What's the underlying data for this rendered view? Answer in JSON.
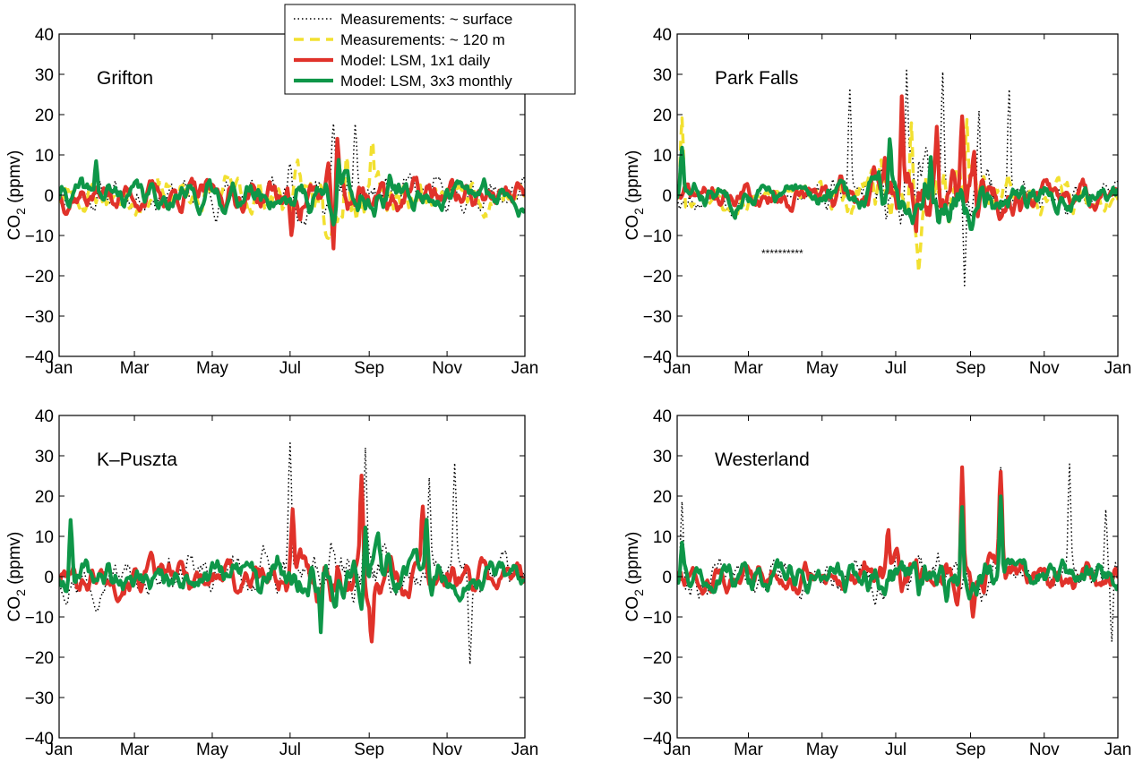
{
  "chart_data": {
    "type": "line",
    "legend": {
      "placement": "top-center",
      "entries": [
        {
          "label": "Measurements: ~ surface",
          "color": "#000000",
          "style": "dotted"
        },
        {
          "label": "Measurements: ~ 120 m",
          "color": "#f2e030",
          "style": "dashed"
        },
        {
          "label": "Model: LSM, 1x1 daily",
          "color": "#e0322a",
          "style": "solid"
        },
        {
          "label": "Model: LSM, 3x3 monthly",
          "color": "#0e9648",
          "style": "solid"
        }
      ]
    },
    "shared_axes": {
      "x_ticks": [
        "Jan",
        "Mar",
        "May",
        "Jul",
        "Sep",
        "Nov",
        "Jan"
      ],
      "x_tick_days": [
        0,
        59,
        120,
        181,
        243,
        304,
        365
      ],
      "xlim": [
        0,
        365
      ],
      "y_ticks": [
        "−40",
        "−30",
        "−20",
        "−10",
        "0",
        "10",
        "20",
        "30",
        "40"
      ],
      "y_tick_values": [
        -40,
        -30,
        -20,
        -10,
        0,
        10,
        20,
        30,
        40
      ],
      "ylim": [
        -40,
        40
      ],
      "ylabel_main": "CO",
      "ylabel_sub": "2",
      "ylabel_unit": " (ppmv)"
    },
    "panels": [
      {
        "station": "Grifton",
        "series": [
          {
            "name": "Measurements: ~ surface",
            "amp": 4.5,
            "seed": 11,
            "bursts": [
              [
                181,
                12
              ],
              [
                215,
                14
              ],
              [
                232,
                10
              ]
            ]
          },
          {
            "name": "Measurements: ~ 120 m",
            "amp": 4.8,
            "seed": 23,
            "bursts": [
              [
                205,
                10
              ],
              [
                225,
                12
              ],
              [
                245,
                8
              ]
            ]
          },
          {
            "name": "Model: LSM, 1x1 daily",
            "amp": 4.0,
            "seed": 37,
            "bursts": [
              [
                182,
                -13
              ],
              [
                215,
                -12
              ],
              [
                218,
                10
              ]
            ]
          },
          {
            "name": "Model: LSM, 3x3 monthly",
            "amp": 3.8,
            "seed": 41,
            "bursts": [
              [
                219,
                12
              ],
              [
                29,
                9
              ]
            ]
          }
        ]
      },
      {
        "station": "Park Falls",
        "annotation": "**********",
        "series": [
          {
            "name": "Measurements: ~ surface",
            "amp": 4.0,
            "seed": 53,
            "bursts": [
              [
                143,
                25
              ],
              [
                190,
                31
              ],
              [
                200,
                34
              ],
              [
                220,
                34
              ],
              [
                238,
                -23
              ],
              [
                250,
                25
              ],
              [
                275,
                25
              ],
              [
                200,
                -23
              ]
            ],
            "gaps": [
              [
                62,
                115
              ]
            ]
          },
          {
            "name": "Measurements: ~ 120 m",
            "amp": 4.0,
            "seed": 67,
            "bursts": [
              [
                4,
                22
              ],
              [
                194,
                20
              ],
              [
                200,
                -14
              ],
              [
                240,
                16
              ]
            ],
            "gaps": [
              [
                62,
                100
              ]
            ]
          },
          {
            "name": "Model: LSM, 1x1 daily",
            "amp": 3.5,
            "seed": 71,
            "bursts": [
              [
                172,
                10
              ],
              [
                186,
                27
              ],
              [
                198,
                -13
              ],
              [
                215,
                12
              ],
              [
                236,
                22
              ],
              [
                246,
                15
              ]
            ]
          },
          {
            "name": "Model: LSM, 3x3 monthly",
            "amp": 3.2,
            "seed": 83,
            "bursts": [
              [
                4,
                10
              ],
              [
                176,
                12
              ],
              [
                210,
                12
              ]
            ]
          }
        ]
      },
      {
        "station": "K–Puszta",
        "series": [
          {
            "name": "Measurements: ~ surface",
            "amp": 5.0,
            "seed": 97,
            "bursts": [
              [
                181,
                31
              ],
              [
                240,
                26
              ],
              [
                290,
                25
              ],
              [
                310,
                25
              ],
              [
                322,
                -22
              ]
            ]
          },
          {
            "name": "Model: LSM, 1x1 daily",
            "amp": 4.5,
            "seed": 101,
            "bursts": [
              [
                183,
                15
              ],
              [
                237,
                22
              ],
              [
                245,
                -18
              ],
              [
                285,
                16
              ]
            ]
          },
          {
            "name": "Model: LSM, 3x3 monthly",
            "amp": 4.5,
            "seed": 109,
            "bursts": [
              [
                9,
                13
              ],
              [
                240,
                18
              ],
              [
                205,
                -14
              ],
              [
                288,
                14
              ]
            ]
          }
        ]
      },
      {
        "station": "Westerland",
        "series": [
          {
            "name": "Measurements: ~ surface",
            "amp": 4.5,
            "seed": 113,
            "bursts": [
              [
                4,
                18
              ],
              [
                268,
                27
              ],
              [
                325,
                26
              ],
              [
                360,
                -19
              ],
              [
                355,
                20
              ]
            ]
          },
          {
            "name": "Model: LSM, 1x1 daily",
            "amp": 4.0,
            "seed": 127,
            "bursts": [
              [
                236,
                28
              ],
              [
                245,
                -12
              ],
              [
                268,
                23
              ],
              [
                175,
                11
              ]
            ]
          },
          {
            "name": "Model: LSM, 3x3 monthly",
            "amp": 4.0,
            "seed": 131,
            "bursts": [
              [
                4,
                9
              ],
              [
                236,
                18
              ],
              [
                268,
                22
              ]
            ]
          }
        ]
      }
    ]
  }
}
